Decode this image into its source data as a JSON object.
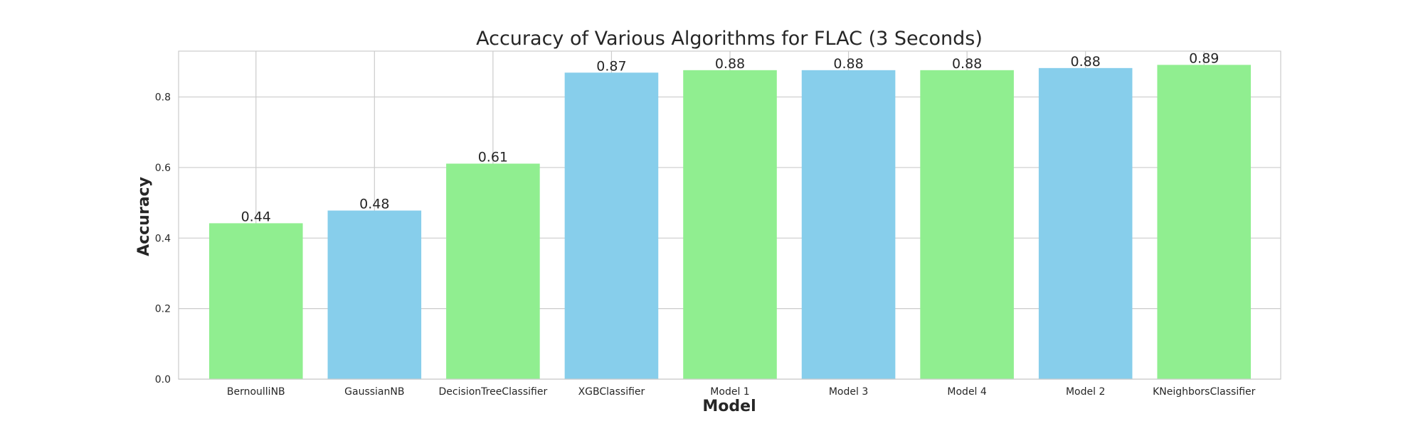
{
  "chart_data": {
    "type": "bar",
    "title": "Accuracy of Various Algorithms for FLAC (3 Seconds)",
    "xlabel": "Model",
    "ylabel": "Accuracy",
    "categories": [
      "BernoulliNB",
      "GaussianNB",
      "DecisionTreeClassifier",
      "XGBClassifier",
      "Model 1",
      "Model 3",
      "Model 4",
      "Model 2",
      "KNeighborsClassifier"
    ],
    "values": [
      0.442,
      0.478,
      0.611,
      0.869,
      0.876,
      0.876,
      0.876,
      0.882,
      0.891
    ],
    "data_labels": [
      "0.44",
      "0.48",
      "0.61",
      "0.87",
      "0.88",
      "0.88",
      "0.88",
      "0.88",
      "0.89"
    ],
    "bar_colors": [
      "#90ee90",
      "#87ceeb",
      "#90ee90",
      "#87ceeb",
      "#90ee90",
      "#87ceeb",
      "#90ee90",
      "#87ceeb",
      "#90ee90"
    ],
    "ylim": [
      0,
      0.93
    ],
    "yticks": [
      0.0,
      0.2,
      0.4,
      0.6,
      0.8
    ],
    "ytick_labels": [
      "0.0",
      "0.2",
      "0.4",
      "0.6",
      "0.8"
    ],
    "grid": true
  }
}
